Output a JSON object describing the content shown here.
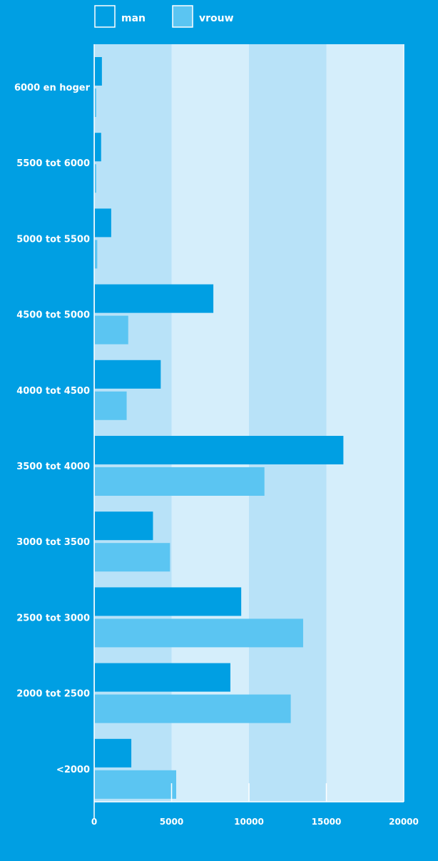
{
  "chart_data": {
    "type": "bar",
    "orientation": "horizontal",
    "categories": [
      "6000 en hoger",
      "5500 tot 6000",
      "5000 tot 5500",
      "4500 tot 5000",
      "4000 tot 4500",
      "3500 tot 4000",
      "3000 tot 3500",
      "2500 tot 3000",
      "2000 tot 2500",
      "<2000"
    ],
    "series": [
      {
        "name": "man",
        "values": [
          500,
          450,
          1100,
          7700,
          4300,
          16100,
          3800,
          9500,
          8800,
          2400
        ],
        "color": "#009fe3"
      },
      {
        "name": "vrouw",
        "values": [
          50,
          50,
          200,
          2200,
          2100,
          11000,
          4900,
          13500,
          12700,
          5300
        ],
        "color": "#5bc5f2"
      }
    ],
    "x_ticks": [
      "0",
      "5000",
      "10000",
      "15000",
      "20000"
    ],
    "xlim": [
      0,
      20000
    ],
    "legend_placement": "top",
    "grid": true,
    "band_colors": [
      "#b8e2f8",
      "#d5eefb"
    ]
  }
}
